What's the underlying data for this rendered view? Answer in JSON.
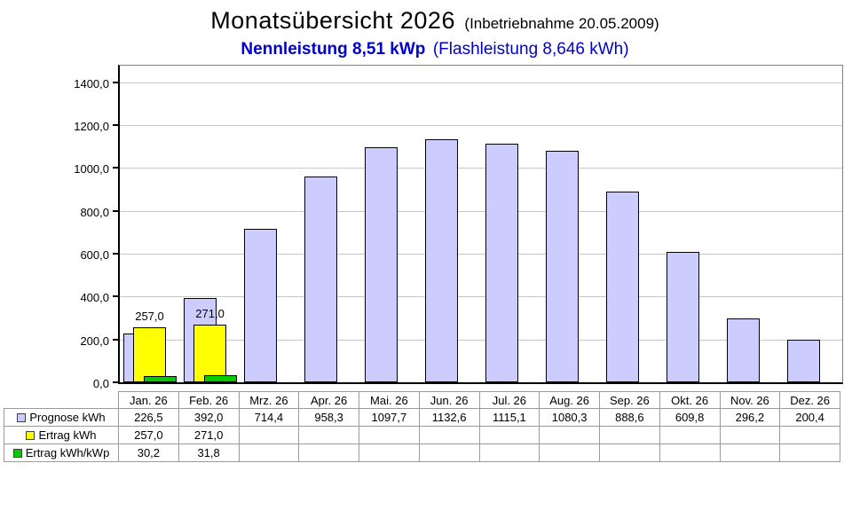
{
  "title": {
    "main": "Monatsübersicht 2026",
    "suffix": "(Inbetriebnahme  20.05.2009)",
    "sub_bold": "Nennleistung 8,51 kWp",
    "sub_rest": "(Flashleistung 8,646 kWh)"
  },
  "colors": {
    "subtitle_blue": "#0000CC",
    "prognose": "#CCCCFF",
    "ertrag": "#FFFF00",
    "ertrag_kwp": "#00CC00",
    "gridline": "#C6C6C6",
    "plot_border": "#808080",
    "axis": "#000000",
    "table_border": "#9A9A9A"
  },
  "chart_data": {
    "type": "bar",
    "title": "Monatsübersicht 2026 (Inbetriebnahme 20.05.2009)",
    "subtitle": "Nennleistung 8,51 kWp (Flashleistung 8,646 kWh)",
    "categories": [
      "Jan. 26",
      "Feb. 26",
      "Mrz. 26",
      "Apr. 26",
      "Mai. 26",
      "Jun. 26",
      "Jul. 26",
      "Aug. 26",
      "Sep. 26",
      "Okt. 26",
      "Nov. 26",
      "Dez. 26"
    ],
    "series": [
      {
        "name": "Prognose kWh",
        "color": "#CCCCFF",
        "show_labels": false,
        "values": [
          226.5,
          392.0,
          714.4,
          958.3,
          1097.7,
          1132.6,
          1115.1,
          1080.3,
          888.6,
          609.8,
          296.2,
          200.4
        ],
        "display": [
          "226,5",
          "392,0",
          "714,4",
          "958,3",
          "1097,7",
          "1132,6",
          "1115,1",
          "1080,3",
          "888,6",
          "609,8",
          "296,2",
          "200,4"
        ]
      },
      {
        "name": "Ertrag kWh",
        "color": "#FFFF00",
        "show_labels": true,
        "values": [
          257.0,
          271.0,
          null,
          null,
          null,
          null,
          null,
          null,
          null,
          null,
          null,
          null
        ],
        "display": [
          "257,0",
          "271,0",
          "",
          "",
          "",
          "",
          "",
          "",
          "",
          "",
          "",
          ""
        ]
      },
      {
        "name": "Ertrag kWh/kWp",
        "color": "#00CC00",
        "show_labels": false,
        "values": [
          30.2,
          31.8,
          null,
          null,
          null,
          null,
          null,
          null,
          null,
          null,
          null,
          null
        ],
        "display": [
          "30,2",
          "31,8",
          "",
          "",
          "",
          "",
          "",
          "",
          "",
          "",
          "",
          ""
        ]
      }
    ],
    "ylim": [
      0,
      1490
    ],
    "ytick_step": 200,
    "yticks": [
      0,
      200,
      400,
      600,
      800,
      1000,
      1200,
      1400
    ],
    "ytick_labels": [
      "0,0",
      "200,0",
      "400,0",
      "600,0",
      "800,0",
      "1000,0",
      "1200,0",
      "1400,0"
    ],
    "grid": true,
    "legend_position": "table-left-column",
    "xlabel": "",
    "ylabel": ""
  }
}
